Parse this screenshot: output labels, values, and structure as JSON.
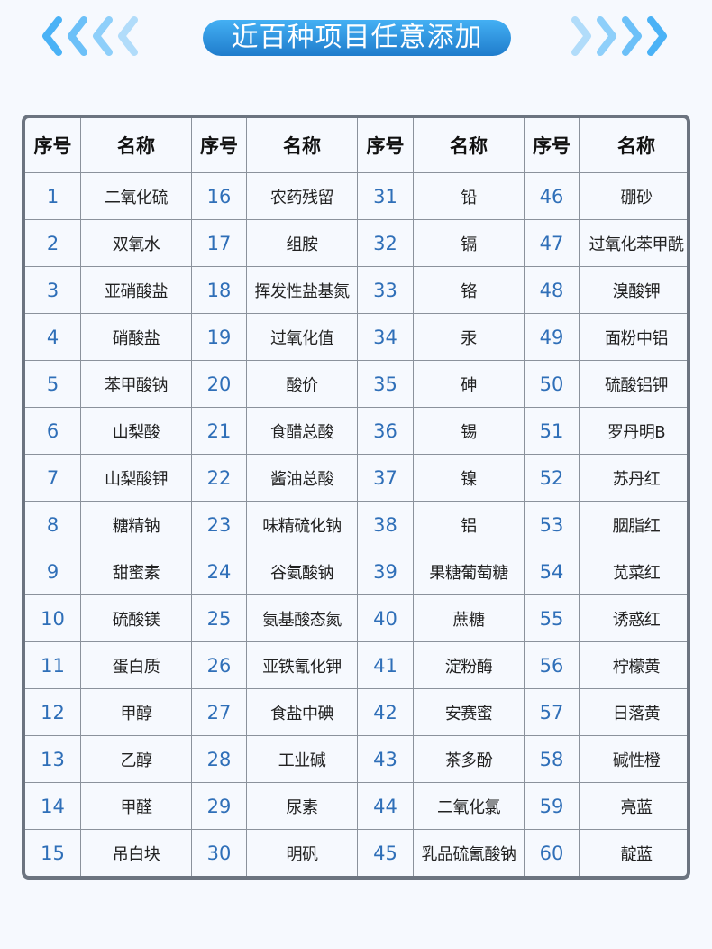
{
  "banner": {
    "title": "近百种项目任意添加",
    "color_start": "#44b0f4",
    "color_end": "#1f7ccc"
  },
  "table": {
    "headers": {
      "index": "序号",
      "name": "名称"
    },
    "items": [
      {
        "n": "1",
        "name": "二氧化硫"
      },
      {
        "n": "2",
        "name": "双氧水"
      },
      {
        "n": "3",
        "name": "亚硝酸盐"
      },
      {
        "n": "4",
        "name": "硝酸盐"
      },
      {
        "n": "5",
        "name": "苯甲酸钠"
      },
      {
        "n": "6",
        "name": "山梨酸"
      },
      {
        "n": "7",
        "name": "山梨酸钾"
      },
      {
        "n": "8",
        "name": "糖精钠"
      },
      {
        "n": "9",
        "name": "甜蜜素"
      },
      {
        "n": "10",
        "name": "硫酸镁"
      },
      {
        "n": "11",
        "name": "蛋白质"
      },
      {
        "n": "12",
        "name": "甲醇"
      },
      {
        "n": "13",
        "name": "乙醇"
      },
      {
        "n": "14",
        "name": "甲醛"
      },
      {
        "n": "15",
        "name": "吊白块"
      },
      {
        "n": "16",
        "name": "农药残留"
      },
      {
        "n": "17",
        "name": "组胺"
      },
      {
        "n": "18",
        "name": "挥发性盐基氮"
      },
      {
        "n": "19",
        "name": "过氧化值"
      },
      {
        "n": "20",
        "name": "酸价"
      },
      {
        "n": "21",
        "name": "食醋总酸"
      },
      {
        "n": "22",
        "name": "酱油总酸"
      },
      {
        "n": "23",
        "name": "味精硫化钠"
      },
      {
        "n": "24",
        "name": "谷氨酸钠"
      },
      {
        "n": "25",
        "name": "氨基酸态氮"
      },
      {
        "n": "26",
        "name": "亚铁氰化钾"
      },
      {
        "n": "27",
        "name": "食盐中碘"
      },
      {
        "n": "28",
        "name": "工业碱"
      },
      {
        "n": "29",
        "name": "尿素"
      },
      {
        "n": "30",
        "name": "明矾"
      },
      {
        "n": "31",
        "name": "铅"
      },
      {
        "n": "32",
        "name": "镉"
      },
      {
        "n": "33",
        "name": "铬"
      },
      {
        "n": "34",
        "name": "汞"
      },
      {
        "n": "35",
        "name": "砷"
      },
      {
        "n": "36",
        "name": "锡"
      },
      {
        "n": "37",
        "name": "镍"
      },
      {
        "n": "38",
        "name": "铝"
      },
      {
        "n": "39",
        "name": "果糖葡萄糖"
      },
      {
        "n": "40",
        "name": "蔗糖"
      },
      {
        "n": "41",
        "name": "淀粉酶"
      },
      {
        "n": "42",
        "name": "安赛蜜"
      },
      {
        "n": "43",
        "name": "茶多酚"
      },
      {
        "n": "44",
        "name": "二氧化氯"
      },
      {
        "n": "45",
        "name": "乳品硫氰酸钠"
      },
      {
        "n": "46",
        "name": "硼砂"
      },
      {
        "n": "47",
        "name": "过氧化苯甲酰"
      },
      {
        "n": "48",
        "name": "溴酸钾"
      },
      {
        "n": "49",
        "name": "面粉中铝"
      },
      {
        "n": "50",
        "name": "硫酸铝钾"
      },
      {
        "n": "51",
        "name": "罗丹明B"
      },
      {
        "n": "52",
        "name": "苏丹红"
      },
      {
        "n": "53",
        "name": "胭脂红"
      },
      {
        "n": "54",
        "name": "苋菜红"
      },
      {
        "n": "55",
        "name": "诱惑红"
      },
      {
        "n": "56",
        "name": "柠檬黄"
      },
      {
        "n": "57",
        "name": "日落黄"
      },
      {
        "n": "58",
        "name": "碱性橙"
      },
      {
        "n": "59",
        "name": "亮蓝"
      },
      {
        "n": "60",
        "name": "靛蓝"
      }
    ]
  },
  "colors": {
    "number": "#2f6fb8",
    "border": "#6c7480",
    "chevron": "#4ab2f6"
  }
}
